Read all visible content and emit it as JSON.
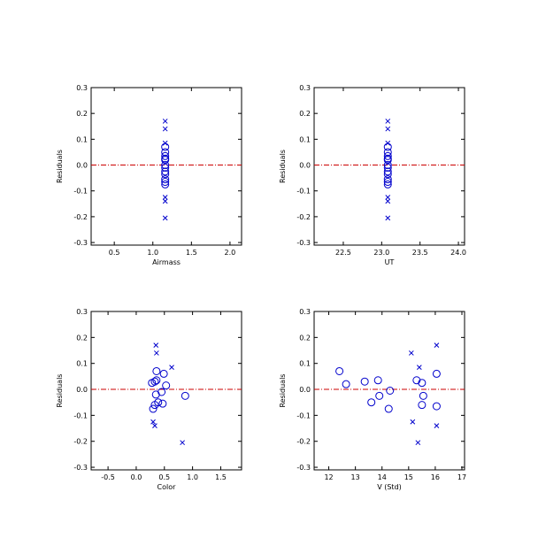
{
  "style": {
    "marker_color": "#0000cc",
    "zero_line_color": "#cc0000",
    "axis_color": "#000000"
  },
  "chart_data": [
    {
      "type": "scatter",
      "xlabel": "Airmass",
      "ylabel": "Residuals",
      "xlim": [
        0.2,
        2.15
      ],
      "ylim": [
        -0.31,
        0.3
      ],
      "xticks": [
        0.5,
        1.0,
        1.5,
        2.0
      ],
      "xtick_labels": [
        "0.5",
        "1.0",
        "1.5",
        "2.0"
      ],
      "yticks": [
        -0.3,
        -0.2,
        -0.1,
        0.0,
        0.1,
        0.2,
        0.3
      ],
      "ytick_labels": [
        "-0.3",
        "-0.2",
        "-0.1",
        "0.0",
        "0.1",
        "0.2",
        "0.3"
      ],
      "zero_line": 0.0,
      "series": [
        {
          "marker": "circle",
          "points": [
            [
              1.16,
              0.07
            ],
            [
              1.16,
              0.05
            ],
            [
              1.16,
              0.035
            ],
            [
              1.16,
              0.02
            ],
            [
              1.16,
              0.0
            ],
            [
              1.16,
              -0.01
            ],
            [
              1.16,
              -0.025
            ],
            [
              1.16,
              -0.035
            ],
            [
              1.16,
              -0.055
            ],
            [
              1.16,
              -0.065
            ],
            [
              1.16,
              -0.075
            ],
            [
              1.16,
              0.025
            ]
          ]
        },
        {
          "marker": "cross",
          "points": [
            [
              1.16,
              0.17
            ],
            [
              1.16,
              0.14
            ],
            [
              1.16,
              0.085
            ],
            [
              1.16,
              -0.125
            ],
            [
              1.16,
              -0.14
            ],
            [
              1.16,
              -0.205
            ]
          ]
        }
      ]
    },
    {
      "type": "scatter",
      "xlabel": "UT",
      "ylabel": "Residuals",
      "xlim": [
        22.12,
        24.08
      ],
      "ylim": [
        -0.31,
        0.3
      ],
      "xticks": [
        22.5,
        23.0,
        23.5,
        24.0
      ],
      "xtick_labels": [
        "22.5",
        "23.0",
        "23.5",
        "24.0"
      ],
      "yticks": [
        -0.3,
        -0.2,
        -0.1,
        0.0,
        0.1,
        0.2,
        0.3
      ],
      "ytick_labels": [
        "-0.3",
        "-0.2",
        "-0.1",
        "0.0",
        "0.1",
        "0.2",
        "0.3"
      ],
      "zero_line": 0.0,
      "series": [
        {
          "marker": "circle",
          "points": [
            [
              23.08,
              0.07
            ],
            [
              23.08,
              0.05
            ],
            [
              23.08,
              0.035
            ],
            [
              23.08,
              0.02
            ],
            [
              23.08,
              0.0
            ],
            [
              23.08,
              -0.01
            ],
            [
              23.08,
              -0.025
            ],
            [
              23.08,
              -0.035
            ],
            [
              23.08,
              -0.055
            ],
            [
              23.08,
              -0.065
            ],
            [
              23.08,
              -0.075
            ],
            [
              23.08,
              0.025
            ]
          ]
        },
        {
          "marker": "cross",
          "points": [
            [
              23.08,
              0.17
            ],
            [
              23.08,
              0.14
            ],
            [
              23.08,
              0.085
            ],
            [
              23.08,
              -0.125
            ],
            [
              23.08,
              -0.14
            ],
            [
              23.08,
              -0.205
            ]
          ]
        }
      ]
    },
    {
      "type": "scatter",
      "xlabel": "Color",
      "ylabel": "Residuals",
      "xlim": [
        -0.8,
        1.87
      ],
      "ylim": [
        -0.31,
        0.3
      ],
      "xticks": [
        -0.5,
        0.0,
        0.5,
        1.0,
        1.5
      ],
      "xtick_labels": [
        "-0.5",
        "0.0",
        "0.5",
        "1.0",
        "1.5"
      ],
      "yticks": [
        -0.3,
        -0.2,
        -0.1,
        0.0,
        0.1,
        0.2,
        0.3
      ],
      "ytick_labels": [
        "-0.3",
        "-0.2",
        "-0.1",
        "0.0",
        "0.1",
        "0.2",
        "0.3"
      ],
      "zero_line": 0.0,
      "series": [
        {
          "marker": "circle",
          "points": [
            [
              0.36,
              0.07
            ],
            [
              0.49,
              0.06
            ],
            [
              0.28,
              0.025
            ],
            [
              0.36,
              0.035
            ],
            [
              0.33,
              0.03
            ],
            [
              0.53,
              0.015
            ],
            [
              0.45,
              -0.01
            ],
            [
              0.35,
              -0.02
            ],
            [
              0.87,
              -0.025
            ],
            [
              0.39,
              -0.05
            ],
            [
              0.47,
              -0.055
            ],
            [
              0.33,
              -0.06
            ],
            [
              0.3,
              -0.075
            ]
          ]
        },
        {
          "marker": "cross",
          "points": [
            [
              0.35,
              0.17
            ],
            [
              0.36,
              0.14
            ],
            [
              0.63,
              0.085
            ],
            [
              0.3,
              -0.125
            ],
            [
              0.33,
              -0.14
            ],
            [
              0.82,
              -0.205
            ]
          ]
        }
      ]
    },
    {
      "type": "scatter",
      "xlabel": "V (Std)",
      "ylabel": "Residuals",
      "xlim": [
        11.45,
        17.1
      ],
      "ylim": [
        -0.31,
        0.3
      ],
      "xticks": [
        12,
        13,
        14,
        15,
        16,
        17
      ],
      "xtick_labels": [
        "12",
        "13",
        "14",
        "15",
        "16",
        "17"
      ],
      "yticks": [
        -0.3,
        -0.2,
        -0.1,
        0.0,
        0.1,
        0.2,
        0.3
      ],
      "ytick_labels": [
        "-0.3",
        "-0.2",
        "-0.1",
        "0.0",
        "0.1",
        "0.2",
        "0.3"
      ],
      "zero_line": 0.0,
      "series": [
        {
          "marker": "circle",
          "points": [
            [
              12.4,
              0.07
            ],
            [
              12.65,
              0.02
            ],
            [
              13.35,
              0.03
            ],
            [
              13.85,
              0.035
            ],
            [
              13.6,
              -0.05
            ],
            [
              13.9,
              -0.025
            ],
            [
              14.25,
              -0.075
            ],
            [
              14.3,
              -0.005
            ],
            [
              15.3,
              0.035
            ],
            [
              15.5,
              0.025
            ],
            [
              15.55,
              -0.025
            ],
            [
              15.5,
              -0.06
            ],
            [
              16.05,
              0.06
            ],
            [
              16.05,
              -0.065
            ]
          ]
        },
        {
          "marker": "cross",
          "points": [
            [
              15.1,
              0.14
            ],
            [
              15.4,
              0.085
            ],
            [
              16.05,
              0.17
            ],
            [
              15.15,
              -0.125
            ],
            [
              15.35,
              -0.205
            ],
            [
              16.05,
              -0.14
            ]
          ]
        }
      ]
    }
  ]
}
